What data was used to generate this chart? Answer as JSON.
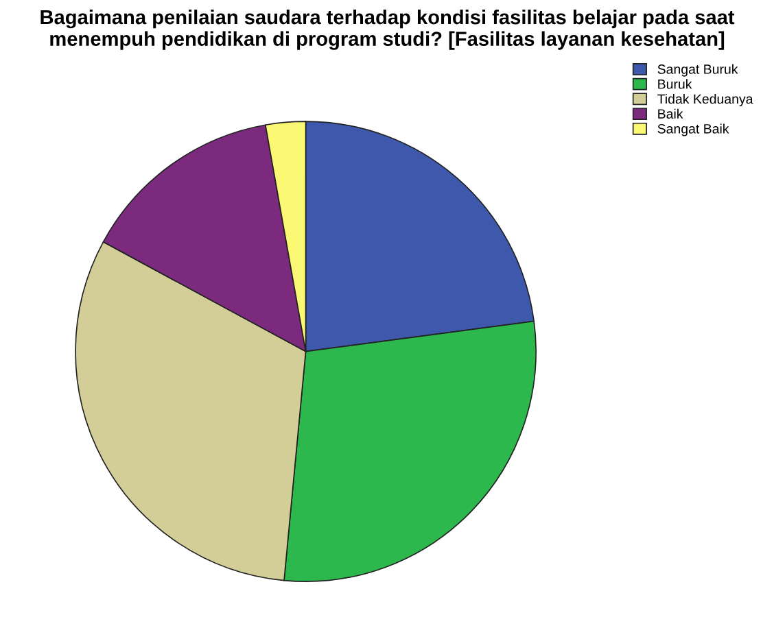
{
  "chart_data": {
    "type": "pie",
    "title": "Bagaimana penilaian saudara terhadap kondisi fasilitas belajar pada saat menempuh pendidikan di program studi? [Fasilitas layanan kesehatan]",
    "categories": [
      "Sangat Buruk",
      "Buruk",
      "Tidak Keduanya",
      "Baik",
      "Sangat Baik"
    ],
    "values": [
      22.9,
      28.6,
      31.4,
      14.3,
      2.8
    ],
    "colors": [
      "#3e58ac",
      "#2db84d",
      "#d3ce97",
      "#7b2a7e",
      "#fbf873"
    ],
    "legend": "top right"
  }
}
